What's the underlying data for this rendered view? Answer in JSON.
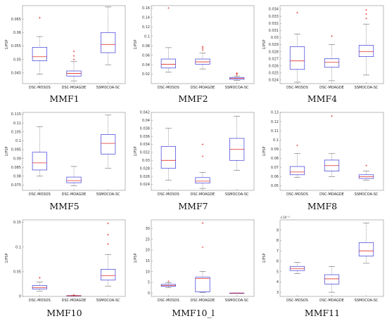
{
  "colors": {
    "box": "#3a3ad8",
    "median": "#e0302a",
    "whisker": "#6a6a6a",
    "outlier": "#e0302a",
    "axis": "#8a8a8a"
  },
  "chart_data": [
    {
      "type": "box",
      "label": "MMF1",
      "ylabel": "1/PSP",
      "ylim": [
        0.041,
        0.07
      ],
      "yticks": [
        0.045,
        0.05,
        0.055,
        0.06,
        0.065
      ],
      "ytick_labels": [
        "0.045",
        "0.05",
        "0.055",
        "0.06",
        "0.065"
      ],
      "categories": [
        "DSC-MOSOS",
        "DSC-MOAGDE",
        "SSMOCOA-SC"
      ],
      "boxes": [
        {
          "lw": 0.0445,
          "q1": 0.0495,
          "med": 0.051,
          "q3": 0.0545,
          "uw": 0.0585,
          "outliers": [
            0.0655
          ]
        },
        {
          "lw": 0.042,
          "q1": 0.0438,
          "med": 0.0448,
          "q3": 0.0457,
          "uw": 0.0493,
          "outliers": [
            0.05,
            0.0513,
            0.053
          ]
        },
        {
          "lw": 0.048,
          "q1": 0.0525,
          "med": 0.0555,
          "q3": 0.06,
          "uw": 0.0695,
          "outliers": []
        }
      ]
    },
    {
      "type": "box",
      "label": "MMF2",
      "ylabel": "1/PSP",
      "ylim": [
        0,
        0.165
      ],
      "yticks": [
        0.02,
        0.04,
        0.06,
        0.08,
        0.1,
        0.12,
        0.14,
        0.16
      ],
      "ytick_labels": [
        "0.02",
        "0.04",
        "0.06",
        "0.08",
        "0.1",
        "0.12",
        "0.14",
        "0.16"
      ],
      "categories": [
        "DSC-MOSOS",
        "DSC-MOAGDE",
        "SSMOCOA-SC"
      ],
      "boxes": [
        {
          "lw": 0.024,
          "q1": 0.033,
          "med": 0.041,
          "q3": 0.052,
          "uw": 0.076,
          "outliers": [
            0.16
          ]
        },
        {
          "lw": 0.031,
          "q1": 0.041,
          "med": 0.046,
          "q3": 0.052,
          "uw": 0.065,
          "outliers": [
            0.071,
            0.075,
            0.078
          ]
        },
        {
          "lw": 0.007,
          "q1": 0.009,
          "med": 0.011,
          "q3": 0.013,
          "uw": 0.016,
          "outliers": [
            0.019,
            0.021,
            0.022
          ]
        }
      ]
    },
    {
      "type": "box",
      "label": "MMF4",
      "ylabel": "1/PSP",
      "ylim": [
        0.0235,
        0.0345
      ],
      "yticks": [
        0.024,
        0.025,
        0.026,
        0.027,
        0.028,
        0.029,
        0.03,
        0.031,
        0.032,
        0.033,
        0.034
      ],
      "ytick_labels": [
        "0.024",
        "0.025",
        "0.026",
        "0.027",
        "0.028",
        "0.029",
        "0.03",
        "0.031",
        "0.032",
        "0.033",
        "0.034"
      ],
      "categories": [
        "DSC-MOSOS",
        "DSC-MOAGDE",
        "SSMOCOA-SC"
      ],
      "boxes": [
        {
          "lw": 0.0237,
          "q1": 0.0255,
          "med": 0.0267,
          "q3": 0.0287,
          "uw": 0.0305,
          "outliers": [
            0.0335
          ]
        },
        {
          "lw": 0.0239,
          "q1": 0.0258,
          "med": 0.0265,
          "q3": 0.027,
          "uw": 0.029,
          "outliers": [
            0.0302
          ]
        },
        {
          "lw": 0.0247,
          "q1": 0.0273,
          "med": 0.028,
          "q3": 0.0289,
          "uw": 0.0319,
          "outliers": [
            0.0327,
            0.0333,
            0.0339
          ]
        }
      ]
    },
    {
      "type": "box",
      "label": "MMF5",
      "ylabel": "1/PSP",
      "ylim": [
        0.072,
        0.116
      ],
      "yticks": [
        0.075,
        0.08,
        0.085,
        0.09,
        0.095,
        0.1,
        0.105,
        0.11,
        0.115
      ],
      "ytick_labels": [
        "0.075",
        "0.08",
        "0.085",
        "0.09",
        "0.095",
        "0.1",
        "0.105",
        "0.11",
        "0.115"
      ],
      "categories": [
        "DSC-MOSOS",
        "DSC-MOAGDE",
        "SSMOCOA-SC"
      ],
      "boxes": [
        {
          "lw": 0.08,
          "q1": 0.0835,
          "med": 0.0875,
          "q3": 0.0935,
          "uw": 0.108,
          "outliers": []
        },
        {
          "lw": 0.0745,
          "q1": 0.0763,
          "med": 0.0775,
          "q3": 0.0795,
          "uw": 0.0855,
          "outliers": []
        },
        {
          "lw": 0.0845,
          "q1": 0.0925,
          "med": 0.0985,
          "q3": 0.1035,
          "uw": 0.1145,
          "outliers": []
        }
      ]
    },
    {
      "type": "box",
      "label": "MMF7",
      "ylabel": "1/PSP",
      "ylim": [
        0.0225,
        0.042
      ],
      "yticks": [
        0.024,
        0.026,
        0.028,
        0.03,
        0.032,
        0.034,
        0.036,
        0.038,
        0.04,
        0.042
      ],
      "ytick_labels": [
        "0.024",
        "0.026",
        "0.028",
        "0.03",
        "0.032",
        "0.034",
        "0.036",
        "0.038",
        "0.04",
        "0.042"
      ],
      "categories": [
        "DSC-MOSOS",
        "DSC-MOAGDE",
        "SSMOCOA-SC"
      ],
      "boxes": [
        {
          "lw": 0.025,
          "q1": 0.028,
          "med": 0.03,
          "q3": 0.0335,
          "uw": 0.038,
          "outliers": []
        },
        {
          "lw": 0.023,
          "q1": 0.0243,
          "med": 0.0248,
          "q3": 0.0257,
          "uw": 0.027,
          "outliers": [
            0.031,
            0.034
          ]
        },
        {
          "lw": 0.0275,
          "q1": 0.03,
          "med": 0.0328,
          "q3": 0.0355,
          "uw": 0.041,
          "outliers": []
        }
      ]
    },
    {
      "type": "box",
      "label": "MMF8",
      "ylabel": "1/PSP",
      "ylim": [
        0.045,
        0.13
      ],
      "yticks": [
        0.05,
        0.06,
        0.07,
        0.08,
        0.09,
        0.1,
        0.11,
        0.12,
        0.13
      ],
      "ytick_labels": [
        "0.05",
        "0.06",
        "0.07",
        "0.08",
        "0.09",
        "0.1",
        "0.11",
        "0.12",
        "0.13"
      ],
      "categories": [
        "DSC-MOSOS",
        "DSC-MOAGDE",
        "SSMOCOA-SC"
      ],
      "boxes": [
        {
          "lw": 0.059,
          "q1": 0.062,
          "med": 0.065,
          "q3": 0.071,
          "uw": 0.085,
          "outliers": [
            0.094
          ]
        },
        {
          "lw": 0.06,
          "q1": 0.066,
          "med": 0.072,
          "q3": 0.078,
          "uw": 0.085,
          "outliers": [
            0.126
          ]
        },
        {
          "lw": 0.056,
          "q1": 0.058,
          "med": 0.06,
          "q3": 0.062,
          "uw": 0.066,
          "outliers": [
            0.072
          ]
        }
      ]
    },
    {
      "type": "box",
      "label": "MMF10",
      "ylabel": "1/PSP",
      "ylim": [
        0,
        0.155
      ],
      "yticks": [
        0,
        0.05,
        0.1,
        0.15
      ],
      "ytick_labels": [
        "0",
        "0.05",
        "0.1",
        "0.15"
      ],
      "categories": [
        "DSC-MOSOS",
        "DSC-MOAGDE",
        "SSMOCOA-SC"
      ],
      "boxes": [
        {
          "lw": 0.011,
          "q1": 0.015,
          "med": 0.018,
          "q3": 0.022,
          "uw": 0.029,
          "outliers": [
            0.038
          ]
        },
        {
          "lw": 0.0008,
          "q1": 0.0012,
          "med": 0.0015,
          "q3": 0.0018,
          "uw": 0.002,
          "outliers": [
            0.003
          ]
        },
        {
          "lw": 0.021,
          "q1": 0.033,
          "med": 0.042,
          "q3": 0.055,
          "uw": 0.085,
          "outliers": [
            0.106,
            0.125,
            0.148
          ]
        }
      ]
    },
    {
      "type": "box",
      "label": "MMF10_l",
      "ylabel": "1/PSP",
      "ylim": [
        -1.5,
        34
      ],
      "yticks": [
        0,
        5,
        10,
        15,
        20,
        25,
        30
      ],
      "ytick_labels": [
        "0",
        "5",
        "10",
        "15",
        "20",
        "25",
        "30"
      ],
      "categories": [
        "DSC-MOSOS",
        "DSC-MOAGDE",
        "SSMOCOA-SC"
      ],
      "boxes": [
        {
          "lw": 2.6,
          "q1": 3.2,
          "med": 3.6,
          "q3": 4.1,
          "uw": 4.8,
          "outliers": [
            5.5
          ]
        },
        {
          "lw": 0.3,
          "q1": 0.6,
          "med": 6.8,
          "q3": 7.4,
          "uw": 10.1,
          "outliers": [
            21.3,
            32.5
          ]
        },
        {
          "lw": 0.02,
          "q1": 0.04,
          "med": 0.05,
          "q3": 0.06,
          "uw": 0.08,
          "outliers": []
        }
      ]
    },
    {
      "type": "box",
      "label": "MMF11",
      "ylabel": "1/PSP",
      "sci_label": "×10⁻³",
      "ylim": [
        2.6,
        10
      ],
      "yticks": [
        3,
        4,
        5,
        6,
        7,
        8,
        9
      ],
      "ytick_labels": [
        "3",
        "4",
        "5",
        "6",
        "7",
        "8",
        "9"
      ],
      "categories": [
        "DSC-MOSOS",
        "DSC-MOAGDE",
        "SSMOCOA-SC"
      ],
      "boxes": [
        {
          "lw": 4.8,
          "q1": 5.1,
          "med": 5.3,
          "q3": 5.5,
          "uw": 5.9,
          "outliers": []
        },
        {
          "lw": 3.0,
          "q1": 3.8,
          "med": 4.3,
          "q3": 4.7,
          "uw": 5.5,
          "outliers": []
        },
        {
          "lw": 5.8,
          "q1": 6.5,
          "med": 7.0,
          "q3": 7.8,
          "uw": 9.7,
          "outliers": []
        }
      ]
    }
  ]
}
